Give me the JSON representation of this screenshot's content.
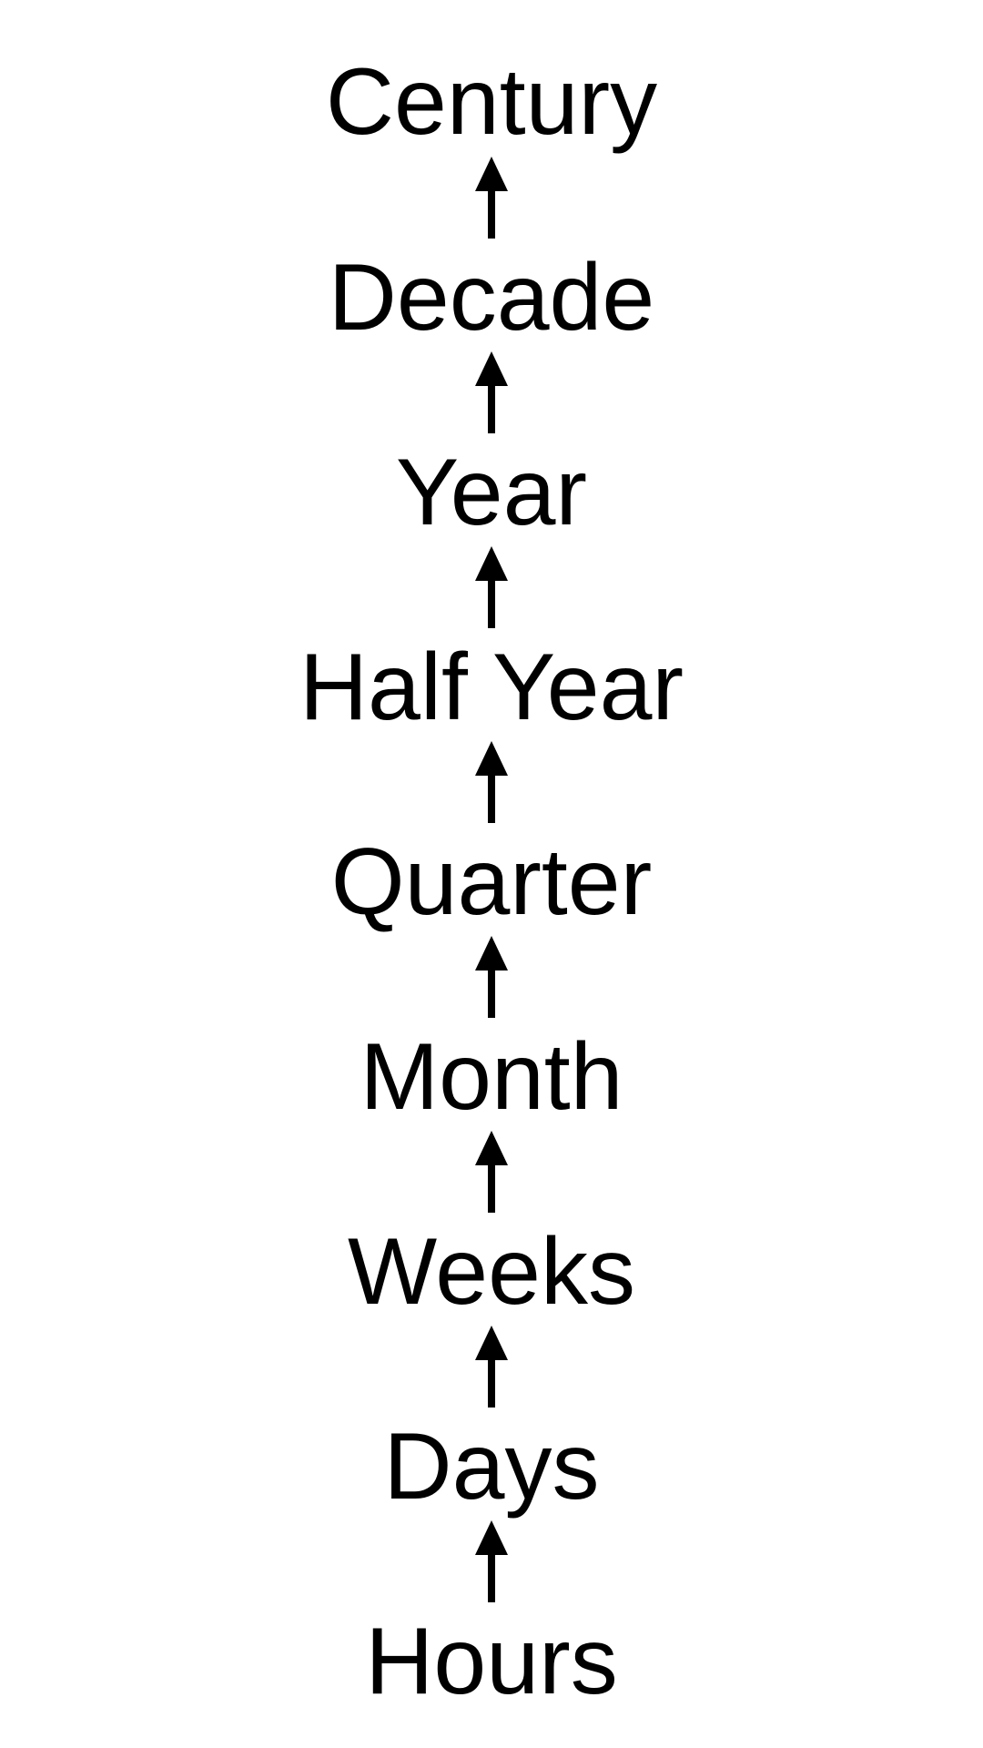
{
  "diagram": {
    "levels": [
      {
        "label": "Century"
      },
      {
        "label": "Decade"
      },
      {
        "label": "Year"
      },
      {
        "label": "Half Year"
      },
      {
        "label": "Quarter"
      },
      {
        "label": "Month"
      },
      {
        "label": "Weeks"
      },
      {
        "label": "Days"
      },
      {
        "label": "Hours"
      }
    ],
    "arrow_direction": "up",
    "colors": {
      "text": "#000000",
      "arrow": "#000000",
      "background": "#ffffff"
    }
  }
}
